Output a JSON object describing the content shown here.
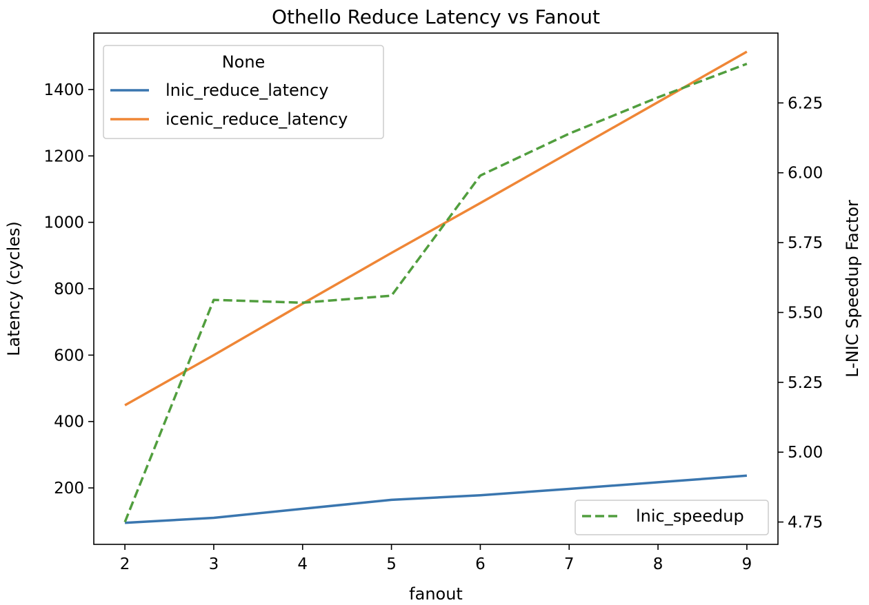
{
  "chart_data": {
    "type": "line",
    "title": "Othello Reduce Latency vs Fanout",
    "xlabel": "fanout",
    "ylabel": "Latency (cycles)",
    "y2label": "L-NIC Speedup Factor",
    "x": [
      2,
      3,
      4,
      5,
      6,
      7,
      8,
      9
    ],
    "xticks": [
      2,
      3,
      4,
      5,
      6,
      7,
      8,
      9
    ],
    "xlim": [
      1.65,
      9.35
    ],
    "ylim": [
      30,
      1570
    ],
    "yticks": [
      200,
      400,
      600,
      800,
      1000,
      1200,
      1400
    ],
    "y2lim": [
      4.67,
      6.5
    ],
    "y2ticks": [
      "4.75",
      "5.00",
      "5.25",
      "5.50",
      "5.75",
      "6.00",
      "6.25"
    ],
    "series": [
      {
        "name": "lnic_reduce_latency",
        "axis": "left",
        "color": "#3a76af",
        "style": "solid",
        "values": [
          95,
          110,
          137,
          164,
          178,
          197,
          217,
          237
        ]
      },
      {
        "name": "icenic_reduce_latency",
        "axis": "left",
        "color": "#ef8636",
        "style": "solid",
        "values": [
          449,
          600,
          755,
          908,
          1058,
          1210,
          1362,
          1514
        ]
      }
    ],
    "series2": [
      {
        "name": "lnic_speedup",
        "axis": "right",
        "color": "#519e3e",
        "style": "dashed",
        "values": [
          4.75,
          5.545,
          5.535,
          5.56,
          5.99,
          6.14,
          6.27,
          6.39
        ]
      }
    ],
    "legend_left": {
      "title": "None",
      "placement": "upper-left"
    },
    "legend_right": {
      "placement": "lower-right"
    }
  }
}
